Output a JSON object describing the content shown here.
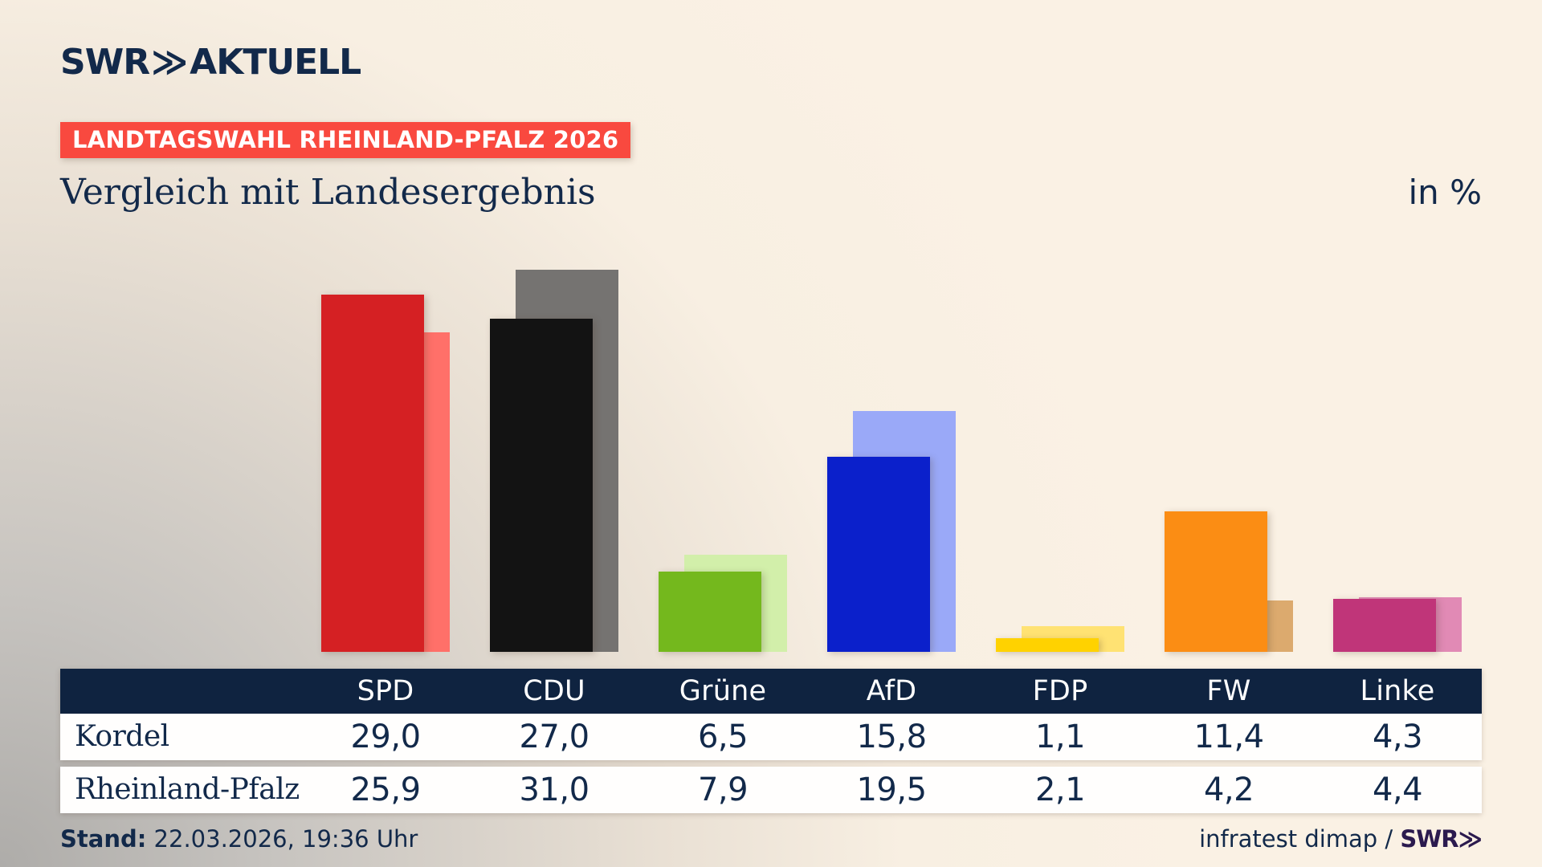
{
  "header": {
    "logo": {
      "brand": "SWR",
      "chevron": "≫",
      "product": "AKTUELL"
    },
    "badge": "LANDTAGSWAHL RHEINLAND-PFALZ 2026",
    "title": "Vergleich mit Landesergebnis",
    "unit_label": "in %"
  },
  "chart_data": {
    "type": "bar",
    "categories": [
      "SPD",
      "CDU",
      "Grüne",
      "AfD",
      "FDP",
      "FW",
      "Linke"
    ],
    "series": [
      {
        "name": "Kordel",
        "values": [
          29.0,
          27.0,
          6.5,
          15.8,
          1.1,
          11.4,
          4.3
        ]
      },
      {
        "name": "Rheinland-Pfalz",
        "values": [
          25.9,
          31.0,
          7.9,
          19.5,
          2.1,
          4.2,
          4.4
        ]
      }
    ],
    "unit": "%",
    "value_format": "german-comma-one-decimal",
    "grid": false,
    "legend_position": "table-rows",
    "colors_front": [
      "#d52023",
      "#131313",
      "#74b81d",
      "#0b20cb",
      "#ffd200",
      "#fb8d14",
      "#c03579"
    ],
    "colors_back": [
      "#ff7069",
      "#757371",
      "#d2efaa",
      "#9aa9f8",
      "#ffe273",
      "#dcaa6e",
      "#e18ab5"
    ],
    "ylim": [
      0,
      31
    ]
  },
  "footer": {
    "stand_label": "Stand:",
    "stand_value": "22.03.2026, 19:36 Uhr",
    "source": "infratest dimap /",
    "source_logo": "SWR≫"
  },
  "colors": {
    "navy_text": "#12294a",
    "table_header_bg": "#0f2340",
    "badge_bg": "#f9493f",
    "swr_logo_footer": "#2b1a4e",
    "background_cream": "#f8efe2",
    "background_gray": "#aeaca9"
  }
}
